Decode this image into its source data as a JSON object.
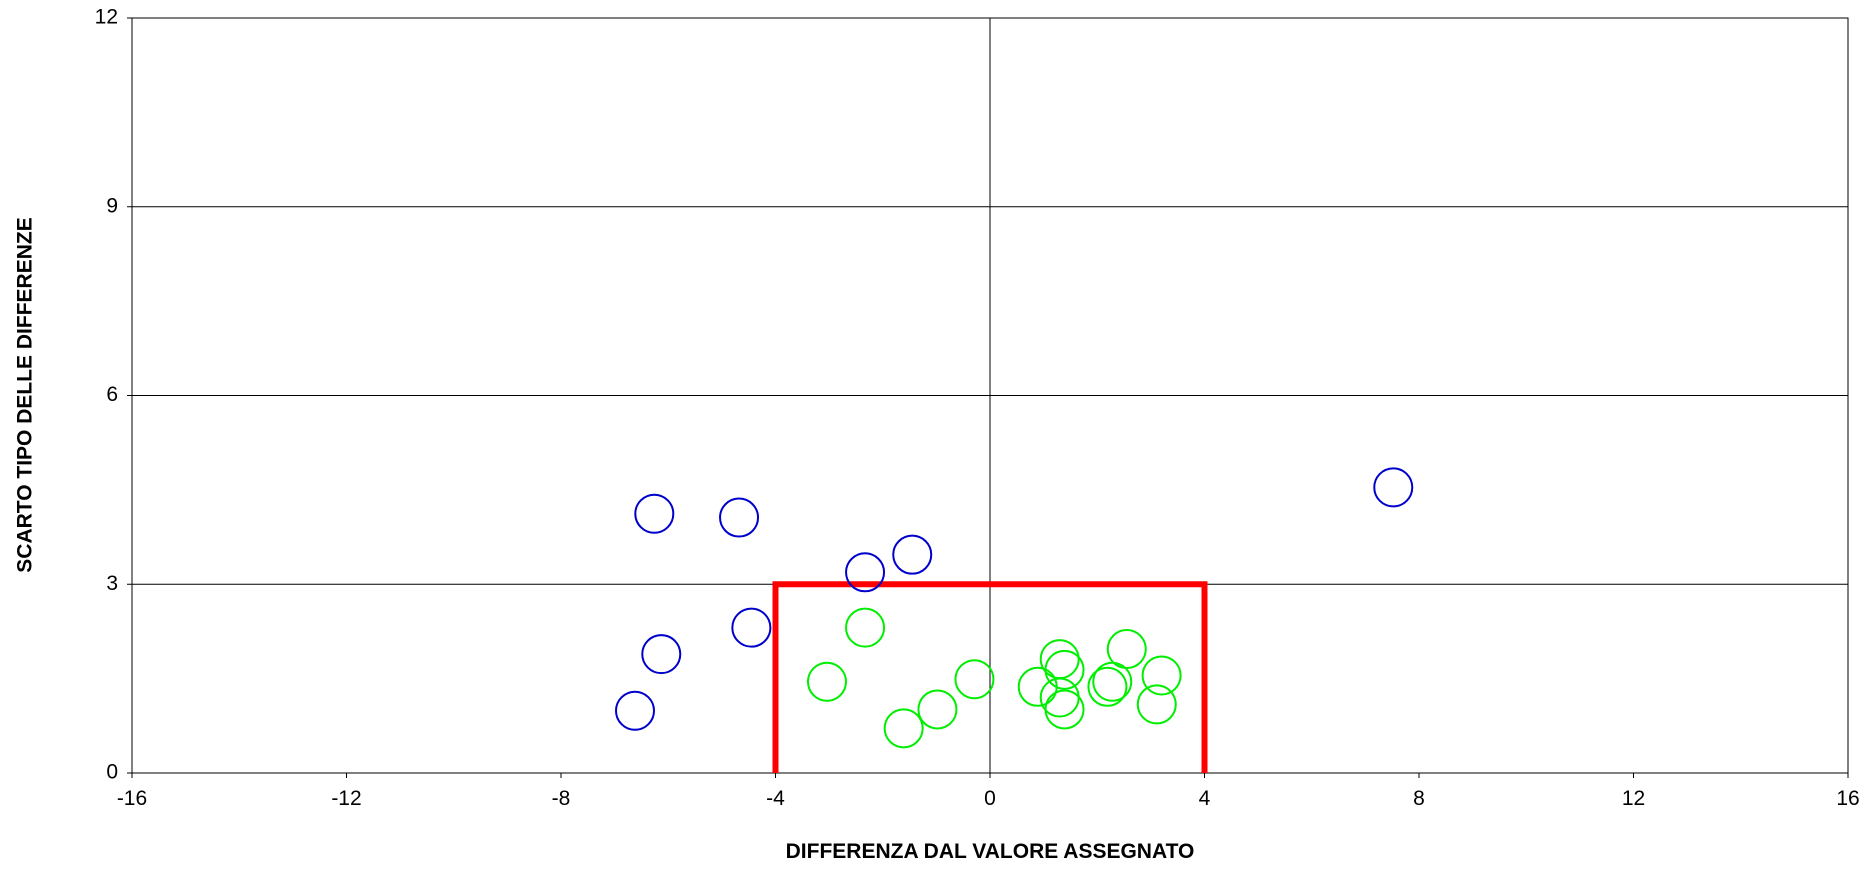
{
  "chart_data": {
    "type": "scatter",
    "xlabel": "DIFFERENZA DAL VALORE ASSEGNATO",
    "ylabel": "SCARTO TIPO DELLE DIFFERENZE",
    "xlim": [
      -16,
      16
    ],
    "ylim": [
      0,
      12
    ],
    "xticks": [
      -16,
      -12,
      -8,
      -4,
      0,
      4,
      8,
      12,
      16
    ],
    "yticks": [
      0,
      3,
      6,
      9,
      12
    ],
    "grid": true,
    "series": [
      {
        "color": "#0000cc",
        "x": [
          -6.26,
          -4.68,
          -1.45,
          -2.33,
          -4.45,
          -6.13,
          -6.62,
          7.52
        ],
        "values": [
          4.12,
          4.06,
          3.47,
          3.19,
          2.31,
          1.89,
          0.99,
          4.54
        ]
      },
      {
        "color": "#00ee00",
        "x": [
          -2.33,
          -3.04,
          -0.29,
          -0.98,
          -1.61,
          0.89,
          1.3,
          1.39,
          1.3,
          1.39,
          2.19,
          2.28,
          2.55,
          3.2,
          3.11
        ],
        "values": [
          2.31,
          1.45,
          1.49,
          1.01,
          0.71,
          1.37,
          1.81,
          1.64,
          1.2,
          1.01,
          1.37,
          1.45,
          1.97,
          1.55,
          1.09
        ]
      }
    ],
    "limit_box": {
      "color": "#ff0000",
      "x": [
        -4,
        -4,
        4,
        4
      ],
      "values": [
        0,
        3,
        3,
        0
      ]
    }
  }
}
